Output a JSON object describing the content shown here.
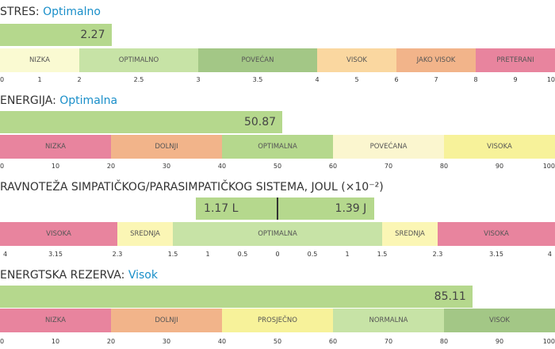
{
  "stres": {
    "label": "STRES",
    "status": "Optimalno",
    "value": 2.27,
    "value_text": "2.27",
    "axis_max": 10,
    "bands": [
      {
        "label": "NIZKA",
        "from": 0,
        "to": 2,
        "color": "#fafad2"
      },
      {
        "label": "OPTIMALNO",
        "from": 2,
        "to": 3,
        "color": "#c7e3a6"
      },
      {
        "label": "POVEĆAN",
        "from": 3,
        "to": 4,
        "color": "#a3c786"
      },
      {
        "label": "VISOK",
        "from": 4,
        "to": 6,
        "color": "#fad7a0"
      },
      {
        "label": "JAKO VISOK",
        "from": 6,
        "to": 8,
        "color": "#f2b48a"
      },
      {
        "label": "PRETERANI",
        "from": 8,
        "to": 10,
        "color": "#e8849e"
      }
    ],
    "ticks": [
      "0",
      "1",
      "2",
      "2.5",
      "3",
      "3.5",
      "4",
      "5",
      "6",
      "7",
      "8",
      "9",
      "10"
    ]
  },
  "energija": {
    "label": "ENERGIJA",
    "status": "Optimalna",
    "value": 50.87,
    "value_text": "50.87",
    "axis_max": 100,
    "bands": [
      {
        "label": "NIZKA",
        "from": 0,
        "to": 20,
        "color": "#e8849e"
      },
      {
        "label": "DOLNJI",
        "from": 20,
        "to": 40,
        "color": "#f2b48a"
      },
      {
        "label": "OPTIMALNA",
        "from": 40,
        "to": 60,
        "color": "#b5d88d"
      },
      {
        "label": "POVEĆANA",
        "from": 60,
        "to": 80,
        "color": "#fbf6cf"
      },
      {
        "label": "VISOKA",
        "from": 80,
        "to": 100,
        "color": "#f7f29a"
      }
    ],
    "ticks": [
      "0",
      "10",
      "20",
      "30",
      "40",
      "50",
      "60",
      "70",
      "80",
      "90",
      "100"
    ]
  },
  "ravnoteza": {
    "label": "RAVNOTEŽA SIMPATIČKOG/PARASIMPATIČKOG SISTEMA, JOUL (×10⁻²)",
    "left_value": 1.17,
    "left_text": "1.17 L",
    "right_value": 1.39,
    "right_text": "1.39 J",
    "bands": [
      {
        "label": "VISOKA",
        "from": -4,
        "to": -2.3,
        "color": "#e8849e"
      },
      {
        "label": "SREDNJA",
        "from": -2.3,
        "to": -1.5,
        "color": "#fbf6b5"
      },
      {
        "label": "OPTIMALNA",
        "from": -1.5,
        "to": 1.5,
        "color": "#c7e3a6"
      },
      {
        "label": "SREDNJA",
        "from": 1.5,
        "to": 2.3,
        "color": "#fbf6b5"
      },
      {
        "label": "VISOKA",
        "from": 2.3,
        "to": 4,
        "color": "#e8849e"
      }
    ],
    "ticks": [
      "4",
      "3.15",
      "2.3",
      "1.5",
      "1",
      "0.5",
      "0",
      "0.5",
      "1",
      "1.5",
      "2.3",
      "3.15",
      "4"
    ]
  },
  "rezerva": {
    "label": "ENERGTSKA REZERVA",
    "status": "Visok",
    "value": 85.11,
    "value_text": "85.11",
    "axis_max": 100,
    "bands": [
      {
        "label": "NIZKA",
        "from": 0,
        "to": 20,
        "color": "#e8849e"
      },
      {
        "label": "DOLNJI",
        "from": 20,
        "to": 40,
        "color": "#f2b48a"
      },
      {
        "label": "PROSJEČNO",
        "from": 40,
        "to": 60,
        "color": "#f7f29a"
      },
      {
        "label": "NORMALNA",
        "from": 60,
        "to": 80,
        "color": "#c7e3a6"
      },
      {
        "label": "VISOK",
        "from": 80,
        "to": 100,
        "color": "#a3c786"
      }
    ],
    "ticks": [
      "0",
      "10",
      "20",
      "30",
      "40",
      "50",
      "60",
      "70",
      "80",
      "90",
      "100"
    ]
  }
}
